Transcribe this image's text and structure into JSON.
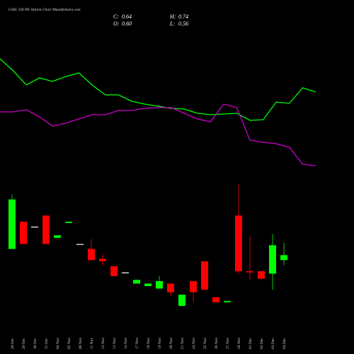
{
  "chart_data": {
    "type": "candlestick",
    "title": "GAIL 160 PE Option Chart MunafaSutra.com",
    "ohlc": {
      "labels": [
        "C:",
        "H:",
        "O:",
        "L:"
      ],
      "values": [
        0.64,
        0.74,
        0.6,
        0.56
      ],
      "value_labels": [
        "0.64",
        "0.74",
        "0.60",
        "0.56"
      ]
    },
    "categories": [
      "28 Oct",
      "29 Oct",
      "30 Oct",
      "31 Oct",
      "04 Nov",
      "05 Nov",
      "06 Nov",
      "11 Nov",
      "12 Nov",
      "13 Nov",
      "14 Nov",
      "17 Nov",
      "18 Nov",
      "19 Nov",
      "20 Nov",
      "21 Nov",
      "24 Nov",
      "25 Nov",
      "26 Nov",
      "27 Nov",
      "28 Nov",
      "01 Dec",
      "02 Dec",
      "03 Dec",
      "04 Dec"
    ],
    "open": [
      0.69,
      0.91,
      0.87,
      0.96,
      0.78,
      0.9,
      0.73,
      0.69,
      0.61,
      0.55,
      0.5,
      0.41,
      0.39,
      0.37,
      0.41,
      0.23,
      0.43,
      0.59,
      0.3,
      0.26,
      0.96,
      0.51,
      0.51,
      0.49,
      0.6
    ],
    "high": [
      1.13,
      0.91,
      0.87,
      0.96,
      0.8,
      0.91,
      0.73,
      0.77,
      0.65,
      0.55,
      0.5,
      0.44,
      0.41,
      0.47,
      0.41,
      0.32,
      0.43,
      0.59,
      0.3,
      0.27,
      1.22,
      0.8,
      0.51,
      0.81,
      0.74
    ],
    "low": [
      0.69,
      0.73,
      0.87,
      0.73,
      0.78,
      0.9,
      0.73,
      0.6,
      0.56,
      0.47,
      0.5,
      0.41,
      0.39,
      0.37,
      0.31,
      0.23,
      0.26,
      0.36,
      0.26,
      0.26,
      0.49,
      0.44,
      0.44,
      0.36,
      0.56
    ],
    "close": [
      1.09,
      0.73,
      0.87,
      0.73,
      0.8,
      0.91,
      0.73,
      0.6,
      0.59,
      0.47,
      0.5,
      0.44,
      0.41,
      0.43,
      0.34,
      0.32,
      0.34,
      0.36,
      0.26,
      0.27,
      0.51,
      0.5,
      0.45,
      0.72,
      0.64
    ],
    "up_color": "#00ff00",
    "down_color": "#ff0000",
    "flat_color": "#ffffff",
    "lines": [
      {
        "color": "#00ff00",
        "values": [
          157,
          140,
          120,
          130,
          125,
          132,
          137,
          120,
          106,
          106,
          97,
          93,
          90,
          87,
          86,
          80,
          78,
          79,
          80,
          70,
          71,
          96,
          94,
          116,
          110
        ]
      },
      {
        "color": "#cc00cc",
        "values": [
          82,
          82,
          85,
          75,
          62,
          66,
          72,
          78,
          78,
          84,
          84,
          87,
          88,
          88,
          80,
          72,
          68,
          93,
          88,
          42,
          39,
          37,
          32,
          8,
          6
        ]
      }
    ]
  }
}
